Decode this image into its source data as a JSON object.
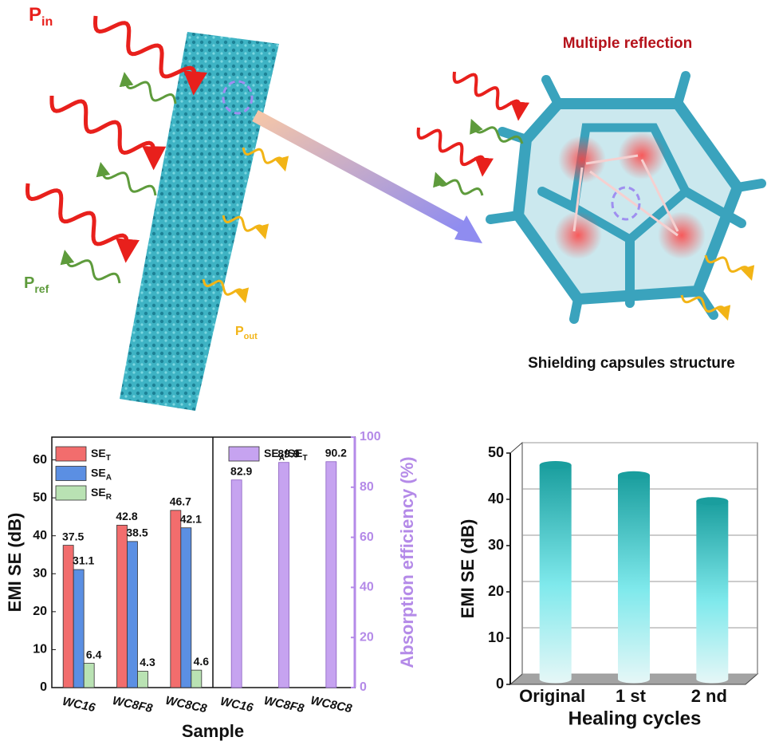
{
  "illustration": {
    "p_in": {
      "main": "P",
      "sub": "in"
    },
    "p_ref": {
      "main": "P",
      "sub": "ref"
    },
    "p_out": {
      "main": "P",
      "sub": "out"
    },
    "heading": "Multiple reflection",
    "caption": "Shielding capsules structure"
  },
  "chart_data": [
    {
      "type": "bar",
      "categories": [
        "WC16",
        "WC8F8",
        "WC8C8"
      ],
      "series": [
        {
          "name": "SE",
          "name_sub": "T",
          "color": "#f26d6d",
          "values": [
            37.5,
            42.8,
            46.7
          ]
        },
        {
          "name": "SE",
          "name_sub": "A",
          "color": "#5b8fe3",
          "values": [
            31.1,
            38.5,
            42.1
          ]
        },
        {
          "name": "SE",
          "name_sub": "R",
          "color": "#b9e2b3",
          "values": [
            6.4,
            4.3,
            4.6
          ]
        },
        {
          "name": "SE",
          "name_sub": "A",
          "name_rest": "/SE",
          "name_sub2": "T",
          "color": "#c6a3f0",
          "axis": "y2",
          "values": [
            82.9,
            89.9,
            90.2
          ]
        }
      ],
      "ylim": [
        0,
        66
      ],
      "yticks": [
        0,
        10,
        20,
        30,
        40,
        50,
        60
      ],
      "y2lim": [
        0,
        100
      ],
      "y2ticks": [
        0,
        20,
        40,
        60,
        80,
        100
      ],
      "y2color": "#b48ae8",
      "xlabel": "Sample",
      "ylabel": "EMI SE (dB)",
      "y2label": "Absorption efficiency (%)",
      "legend": "upper left",
      "grid": false
    },
    {
      "type": "bar3d",
      "categories": [
        "Original",
        "1 st",
        "2 nd"
      ],
      "values": [
        46.3,
        44.1,
        38.5
      ],
      "color": "#1a9e9e",
      "ylim": [
        0,
        50
      ],
      "yticks": [
        0,
        10,
        20,
        30,
        40,
        50
      ],
      "xlabel": "Healing cycles",
      "ylabel": "EMI SE (dB)",
      "grid": true
    }
  ]
}
